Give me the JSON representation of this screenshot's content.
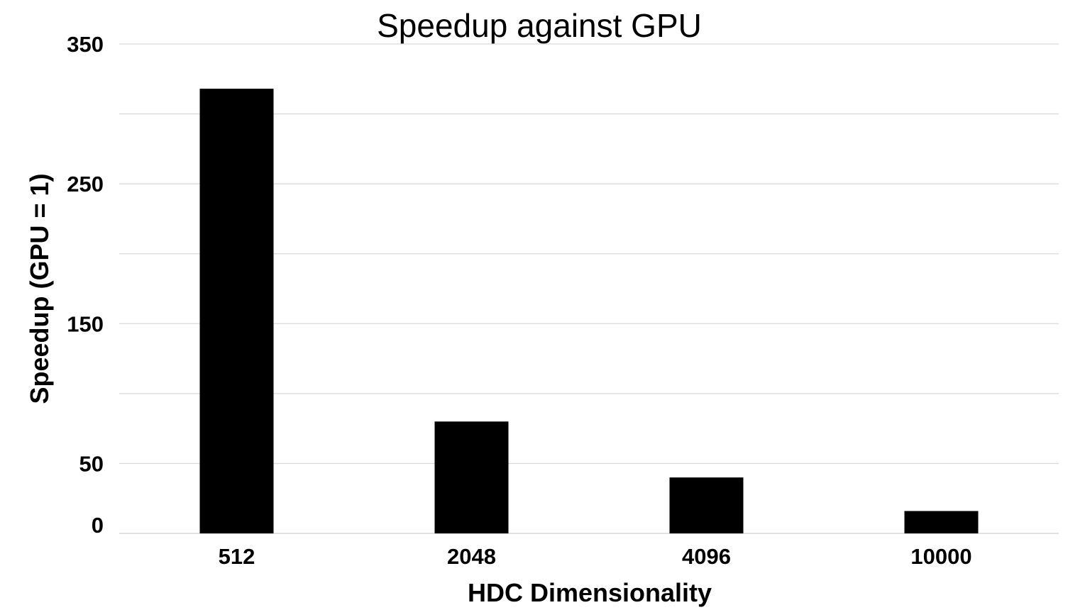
{
  "chart_data": {
    "type": "bar",
    "title": "Speedup against GPU",
    "xlabel": "HDC Dimensionality",
    "ylabel": "Speedup (GPU = 1)",
    "categories": [
      "512",
      "2048",
      "4096",
      "10000"
    ],
    "values": [
      318,
      80,
      40,
      16
    ],
    "ylim": [
      0,
      350
    ],
    "y_gridlines": [
      0,
      50,
      100,
      150,
      200,
      250,
      300,
      350
    ],
    "y_tick_labels": [
      "0",
      "50",
      "150",
      "250",
      "350"
    ],
    "grid": true,
    "legend": "none",
    "bar_color": "#000000",
    "grid_color": "#d9d9d9"
  }
}
